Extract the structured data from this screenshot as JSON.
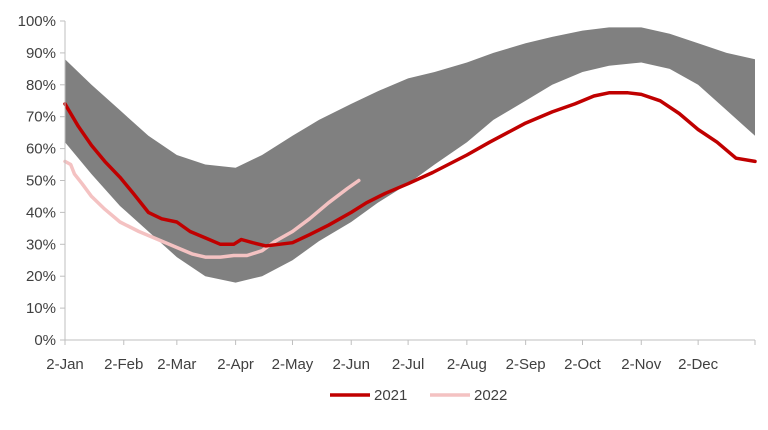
{
  "chart_data": {
    "type": "area",
    "title": "",
    "xlabel": "",
    "ylabel": "",
    "ylim": [
      0,
      100
    ],
    "y_ticks": [
      "0%",
      "10%",
      "20%",
      "30%",
      "40%",
      "50%",
      "60%",
      "70%",
      "80%",
      "90%",
      "100%"
    ],
    "x_ticks": [
      "2-Jan",
      "2-Feb",
      "2-Mar",
      "2-Apr",
      "2-May",
      "2-Jun",
      "2-Jul",
      "2-Aug",
      "2-Sep",
      "2-Oct",
      "2-Nov",
      "2-Dec"
    ],
    "x_tick_days": [
      1,
      32,
      60,
      91,
      121,
      152,
      182,
      213,
      244,
      274,
      305,
      335
    ],
    "x_range_days": [
      1,
      365
    ],
    "grid": false,
    "legend": "bottom",
    "range_band": {
      "color": "#808080",
      "points": [
        [
          1,
          62,
          88
        ],
        [
          15,
          52,
          80
        ],
        [
          30,
          42,
          72
        ],
        [
          45,
          34,
          64
        ],
        [
          60,
          26,
          58
        ],
        [
          75,
          20,
          55
        ],
        [
          91,
          18,
          54
        ],
        [
          105,
          20,
          58
        ],
        [
          121,
          25,
          64
        ],
        [
          135,
          31,
          69
        ],
        [
          152,
          37,
          74
        ],
        [
          166,
          43,
          78
        ],
        [
          182,
          49,
          82
        ],
        [
          196,
          55,
          84
        ],
        [
          213,
          62,
          87
        ],
        [
          227,
          69,
          90
        ],
        [
          244,
          75,
          93
        ],
        [
          258,
          80,
          95
        ],
        [
          274,
          84,
          97
        ],
        [
          288,
          86,
          98
        ],
        [
          305,
          87,
          98
        ],
        [
          320,
          85,
          96
        ],
        [
          335,
          80,
          93
        ],
        [
          350,
          72,
          90
        ],
        [
          365,
          64,
          88
        ]
      ]
    },
    "series": [
      {
        "name": "2021",
        "color": "#c00000",
        "points": [
          [
            1,
            74
          ],
          [
            8,
            67
          ],
          [
            15,
            61
          ],
          [
            22,
            56
          ],
          [
            30,
            51
          ],
          [
            37,
            46
          ],
          [
            45,
            40
          ],
          [
            52,
            38
          ],
          [
            60,
            37
          ],
          [
            67,
            34
          ],
          [
            75,
            32
          ],
          [
            83,
            30
          ],
          [
            90,
            30
          ],
          [
            94,
            31.5
          ],
          [
            100,
            30.5
          ],
          [
            107,
            29.5
          ],
          [
            114,
            30
          ],
          [
            121,
            30.5
          ],
          [
            130,
            33
          ],
          [
            140,
            36
          ],
          [
            152,
            40
          ],
          [
            160,
            43
          ],
          [
            170,
            46
          ],
          [
            182,
            49
          ],
          [
            195,
            52.5
          ],
          [
            213,
            58
          ],
          [
            225,
            62
          ],
          [
            244,
            68
          ],
          [
            258,
            71.5
          ],
          [
            270,
            74
          ],
          [
            280,
            76.5
          ],
          [
            288,
            77.5
          ],
          [
            298,
            77.5
          ],
          [
            305,
            77
          ],
          [
            315,
            75
          ],
          [
            325,
            71
          ],
          [
            335,
            66
          ],
          [
            345,
            62
          ],
          [
            355,
            57
          ],
          [
            365,
            56
          ]
        ]
      },
      {
        "name": "2022",
        "color": "#f4c2c2",
        "points": [
          [
            1,
            56
          ],
          [
            4,
            55
          ],
          [
            6,
            52
          ],
          [
            10,
            49
          ],
          [
            15,
            45
          ],
          [
            22,
            41
          ],
          [
            30,
            37
          ],
          [
            40,
            34
          ],
          [
            50,
            31.5
          ],
          [
            60,
            29
          ],
          [
            68,
            27
          ],
          [
            75,
            26
          ],
          [
            83,
            26
          ],
          [
            90,
            26.5
          ],
          [
            97,
            26.5
          ],
          [
            105,
            28
          ],
          [
            112,
            31
          ],
          [
            121,
            34
          ],
          [
            130,
            38
          ],
          [
            140,
            43
          ],
          [
            150,
            47.5
          ],
          [
            156,
            50
          ]
        ]
      }
    ]
  }
}
